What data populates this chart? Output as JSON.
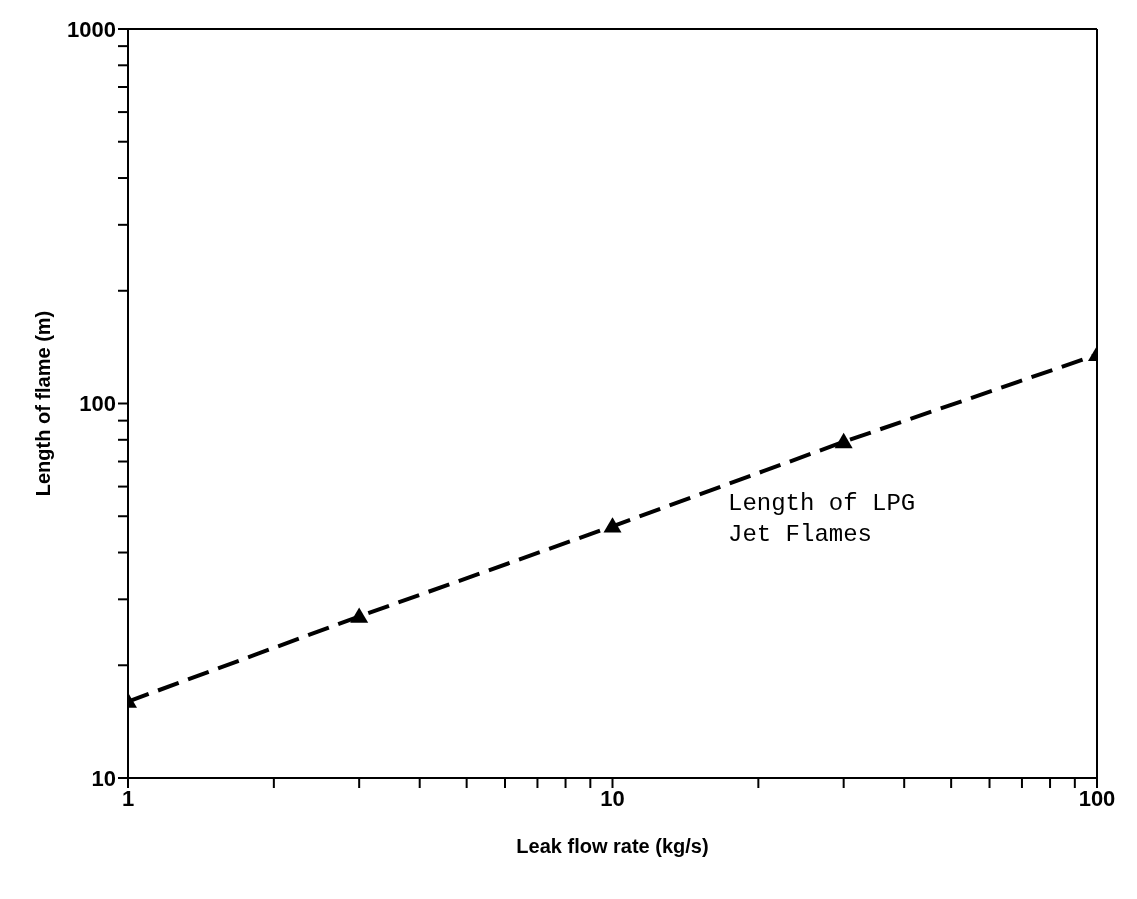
{
  "chart_data": {
    "type": "line",
    "xlabel": "Leak flow rate (kg/s)",
    "ylabel": "Length of flame (m)",
    "x": [
      1,
      3,
      10,
      30,
      100
    ],
    "series": [
      {
        "color": "#000000",
        "values": [
          16,
          27,
          47,
          79,
          135
        ]
      }
    ],
    "log": "xy",
    "xlim": [
      1,
      100
    ],
    "ylim": [
      10,
      1000
    ],
    "xticks": [
      1,
      {
        "value": 2,
        "label": null
      },
      {
        "value": 3,
        "label": null
      },
      {
        "value": 4,
        "label": null
      },
      {
        "value": 5,
        "label": null
      },
      {
        "value": 6,
        "label": null
      },
      {
        "value": 7,
        "label": null
      },
      {
        "value": 8,
        "label": null
      },
      {
        "value": 9,
        "label": null
      },
      10,
      {
        "value": 20,
        "label": null
      },
      {
        "value": 30,
        "label": null
      },
      {
        "value": 40,
        "label": null
      },
      {
        "value": 50,
        "label": null
      },
      {
        "value": 60,
        "label": null
      },
      {
        "value": 70,
        "label": null
      },
      {
        "value": 80,
        "label": null
      },
      {
        "value": 90,
        "label": null
      },
      100
    ],
    "yticks": [
      10,
      {
        "value": 20,
        "label": null
      },
      {
        "value": 30,
        "label": null
      },
      {
        "value": 40,
        "label": null
      },
      {
        "value": 50,
        "label": null
      },
      {
        "value": 60,
        "label": null
      },
      {
        "value": 70,
        "label": null
      },
      {
        "value": 80,
        "label": null
      },
      {
        "value": 90,
        "label": null
      },
      100,
      {
        "value": 200,
        "label": null
      },
      {
        "value": 300,
        "label": null
      },
      {
        "value": 400,
        "label": null
      },
      {
        "value": 500,
        "label": null
      },
      {
        "value": 600,
        "label": null
      },
      {
        "value": 700,
        "label": null
      },
      {
        "value": 800,
        "label": null
      },
      {
        "value": 900,
        "label": null
      },
      1000
    ],
    "marker": "triangle",
    "line_style": "dashed",
    "grid": false,
    "legend": false,
    "annotations": [
      "Length of LPG\nJet Flames"
    ]
  }
}
